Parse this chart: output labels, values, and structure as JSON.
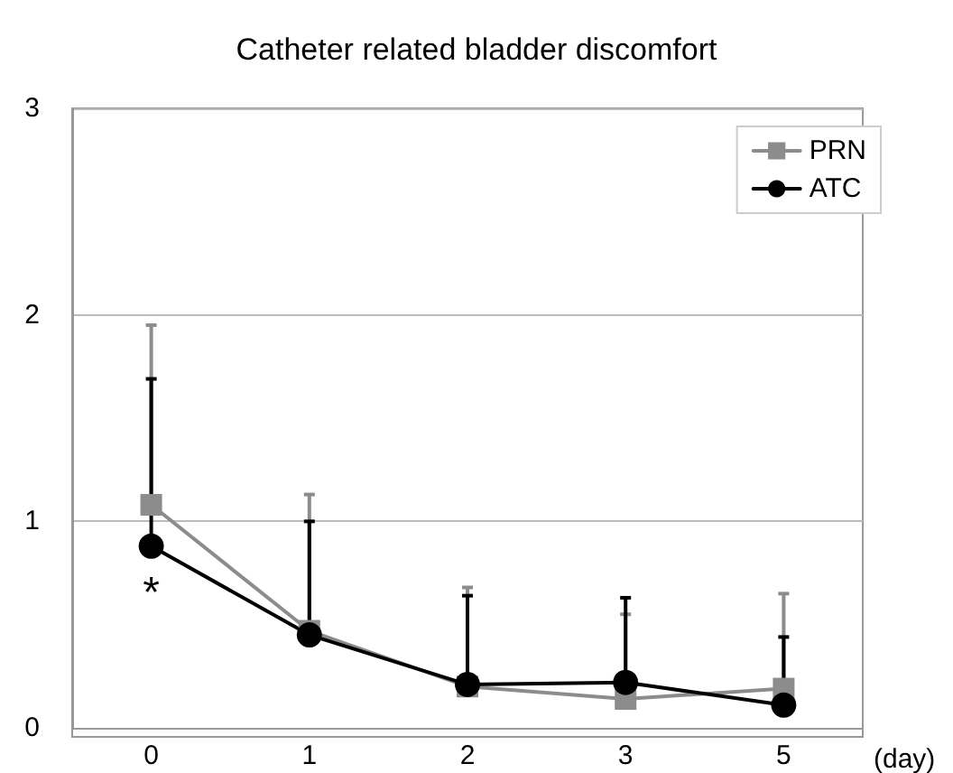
{
  "chart_data": {
    "type": "line",
    "title": "Catheter related bladder discomfort",
    "xlabel": "(day)",
    "categories": [
      "0",
      "1",
      "2",
      "3",
      "5"
    ],
    "series": [
      {
        "name": "PRN",
        "color": "#8c8c8c",
        "marker": "square",
        "values": [
          1.08,
          0.47,
          0.2,
          0.14,
          0.19
        ],
        "errors": [
          [
            1.08,
            1.95
          ],
          [
            0.47,
            1.13
          ],
          [
            0.2,
            0.68
          ],
          [
            0.14,
            0.55
          ],
          [
            0.19,
            0.65
          ]
        ]
      },
      {
        "name": "ATC",
        "color": "#000000",
        "marker": "circle",
        "values": [
          0.88,
          0.45,
          0.21,
          0.22,
          0.11
        ],
        "errors": [
          [
            0.88,
            1.69
          ],
          [
            0.45,
            1.0
          ],
          [
            0.21,
            0.64
          ],
          [
            0.22,
            0.63
          ],
          [
            0.11,
            0.44
          ]
        ]
      }
    ],
    "ylim": [
      0,
      3
    ],
    "yticks": [
      0,
      1,
      2,
      3
    ],
    "grid": "y",
    "legend": "top right",
    "line_style": "solid",
    "annotations": [
      "*"
    ]
  }
}
